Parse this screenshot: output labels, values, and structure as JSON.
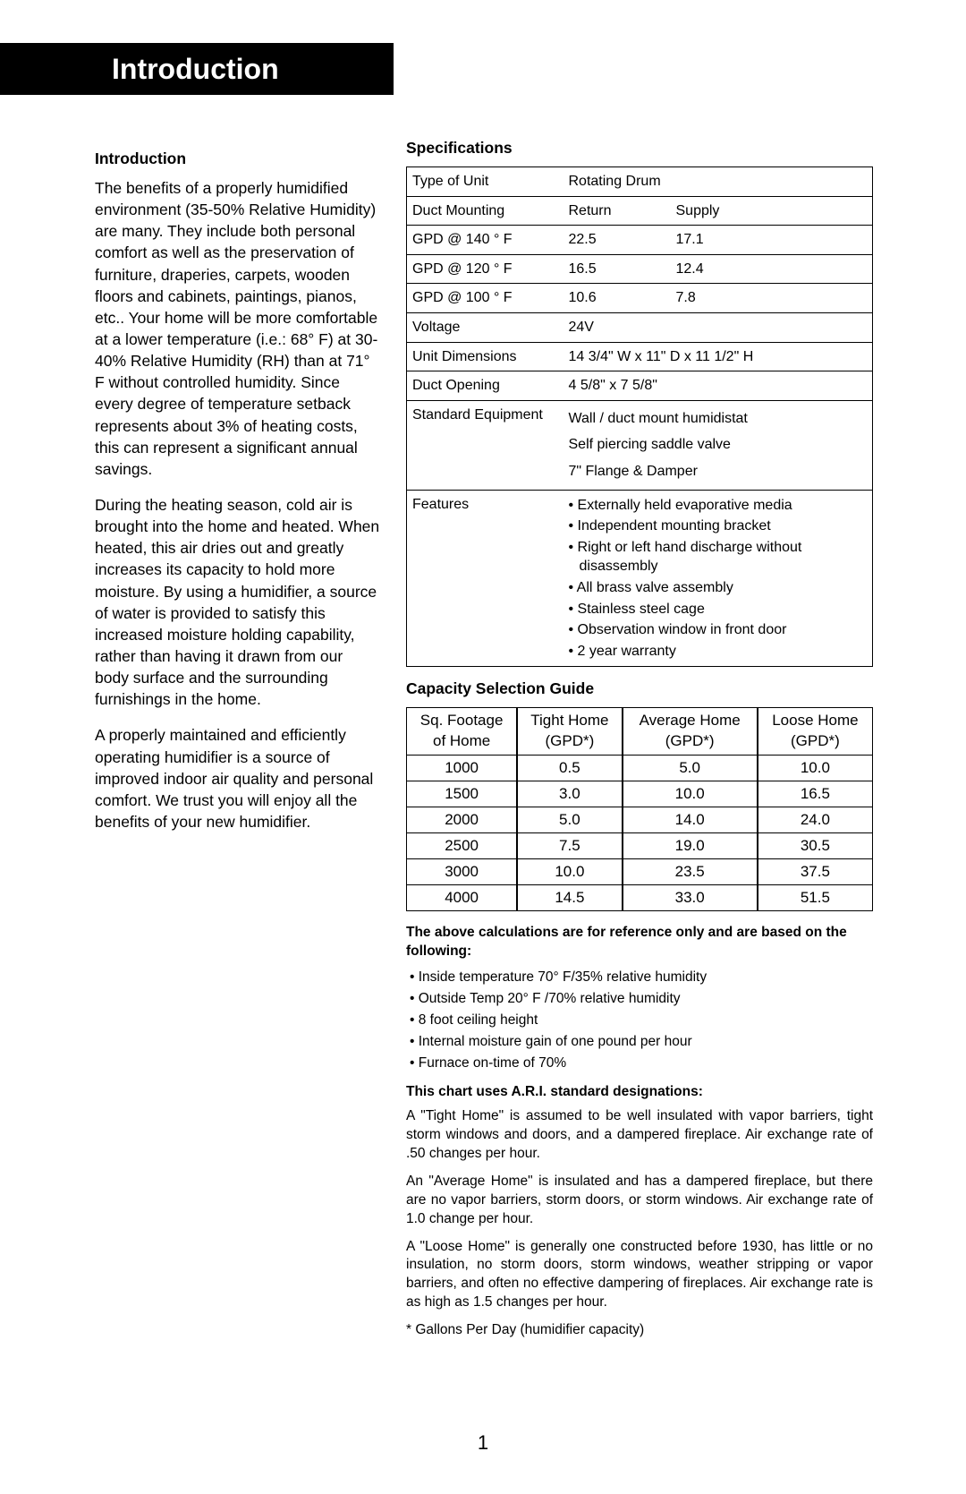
{
  "title_bar": "Introduction",
  "page_number": "1",
  "intro": {
    "heading": "Introduction",
    "p1": "The benefits of a properly humidified environment (35-50% Relative Humidity) are many. They include both personal comfort as well as the preservation of furniture, draperies, carpets, wooden floors and cabinets, paintings, pianos, etc.. Your home will be more comfortable at a lower temperature (i.e.: 68° F) at 30-40% Relative Humidity (RH) than at 71° F without controlled humidity. Since every degree of temperature setback represents about 3% of heating costs, this can represent a significant annual savings.",
    "p2": "During the heating season, cold air is brought into the home and heated. When heated, this air dries out and greatly increases its capacity to hold more moisture. By using a humidifier, a source of water is provided to satisfy this increased moisture holding capability, rather than having it drawn from our body surface and the surrounding furnishings in the home.",
    "p3": "A properly maintained and efficiently operating humidifier is a source of improved indoor air quality and personal comfort. We trust you will enjoy all the benefits of your new humidifier."
  },
  "specs": {
    "heading": "Specifications",
    "rows": {
      "type_of_unit": {
        "label": "Type of Unit",
        "value": "Rotating Drum"
      },
      "duct_mounting": {
        "label": "Duct Mounting",
        "col_a": "Return",
        "col_b": "Supply"
      },
      "gpd_140": {
        "label": "GPD @ 140 ° F",
        "col_a": "22.5",
        "col_b": "17.1"
      },
      "gpd_120": {
        "label": "GPD @ 120 ° F",
        "col_a": "16.5",
        "col_b": "12.4"
      },
      "gpd_100": {
        "label": "GPD @ 100 ° F",
        "col_a": "10.6",
        "col_b": "7.8"
      },
      "voltage": {
        "label": "Voltage",
        "value": "24V"
      },
      "unit_dimensions": {
        "label": "Unit Dimensions",
        "value": "14 3/4\" W x 11\" D  x 11 1/2\" H"
      },
      "duct_opening": {
        "label": "Duct Opening",
        "value": "4 5/8\" x 7 5/8\""
      },
      "standard_equipment": {
        "label": "Standard Equipment",
        "lines": [
          "Wall / duct mount humidistat",
          "Self piercing saddle valve",
          "7\" Flange & Damper"
        ]
      },
      "features": {
        "label": "Features",
        "lines": [
          "• Externally held evaporative media",
          "• Independent mounting bracket",
          "• Right or left hand discharge without disassembly",
          "• All brass valve assembly",
          "• Stainless steel cage",
          "• Observation window in front door",
          "• 2 year warranty"
        ]
      }
    }
  },
  "capacity": {
    "heading": "Capacity Selection Guide",
    "columns": [
      {
        "l1": "Sq. Footage",
        "l2": "of Home"
      },
      {
        "l1": "Tight Home",
        "l2": "(GPD*)"
      },
      {
        "l1": "Average Home",
        "l2": "(GPD*)"
      },
      {
        "l1": "Loose Home",
        "l2": "(GPD*)"
      }
    ],
    "rows": [
      [
        "1000",
        "0.5",
        "5.0",
        "10.0"
      ],
      [
        "1500",
        "3.0",
        "10.0",
        "16.5"
      ],
      [
        "2000",
        "5.0",
        "14.0",
        "24.0"
      ],
      [
        "2500",
        "7.5",
        "19.0",
        "30.5"
      ],
      [
        "3000",
        "10.0",
        "23.5",
        "37.5"
      ],
      [
        "4000",
        "14.5",
        "33.0",
        "51.5"
      ]
    ]
  },
  "notes": {
    "calc_heading": "The above calculations are for reference only and are based on the following:",
    "calc_bullets": [
      "Inside temperature 70° F/35% relative humidity",
      "Outside Temp 20° F /70% relative humidity",
      "8 foot ceiling height",
      "Internal moisture gain of one pound per hour",
      "Furnace on-time of 70%"
    ],
    "ari_heading": "This chart uses A.R.I. standard designations:",
    "tight": "A \"Tight Home\" is assumed to be well insulated with vapor barriers, tight storm windows and doors, and a dampered fireplace. Air exchange rate of .50 changes per hour.",
    "average": "An \"Average Home\" is insulated and has a dampered fireplace, but there are no vapor barriers, storm doors, or storm windows. Air exchange rate of 1.0 change per hour.",
    "loose": "A \"Loose Home\" is generally one constructed before 1930, has little or no insulation, no storm doors, storm windows, weather stripping or vapor barriers, and often no effective dampering of fireplaces. Air exchange rate is as high as 1.5 changes per hour.",
    "footnote": "* Gallons Per Day (humidifier capacity)"
  }
}
